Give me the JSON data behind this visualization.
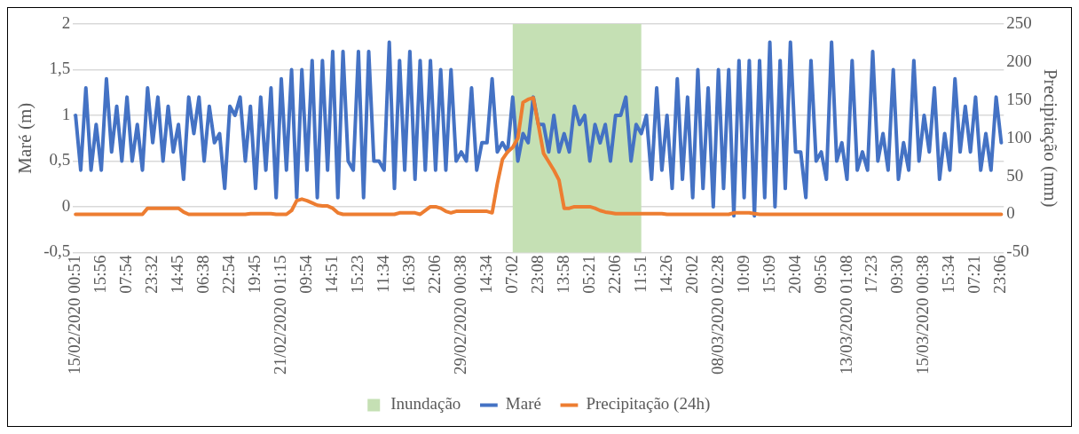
{
  "chart_data": {
    "type": "line",
    "categories": [
      "15/02/2020 00:51",
      null,
      null,
      null,
      null,
      "15:56",
      null,
      null,
      null,
      null,
      "07:54",
      null,
      null,
      null,
      null,
      "23:32",
      null,
      null,
      null,
      null,
      "14:45",
      null,
      null,
      null,
      null,
      "06:38",
      null,
      null,
      null,
      null,
      "22:54",
      null,
      null,
      null,
      null,
      "19:45",
      null,
      null,
      null,
      null,
      "21/02/2020 01:15",
      null,
      null,
      null,
      null,
      "09:54",
      null,
      null,
      null,
      null,
      "14:51",
      null,
      null,
      null,
      null,
      "15:23",
      null,
      null,
      null,
      null,
      "11:34",
      null,
      null,
      null,
      null,
      "16:39",
      null,
      null,
      null,
      null,
      "22:06",
      null,
      null,
      null,
      null,
      "29/02/2020 00:38",
      null,
      null,
      null,
      null,
      "14:34",
      null,
      null,
      null,
      null,
      "07:02",
      null,
      null,
      null,
      null,
      "23:08",
      null,
      null,
      null,
      null,
      "13:58",
      null,
      null,
      null,
      null,
      "05:21",
      null,
      null,
      null,
      null,
      "22:06",
      null,
      null,
      null,
      null,
      "11:51",
      null,
      null,
      null,
      null,
      "14:26",
      null,
      null,
      null,
      null,
      "20:02",
      null,
      null,
      null,
      null,
      "08/03/2020 02:28",
      null,
      null,
      null,
      null,
      "10:09",
      null,
      null,
      null,
      null,
      "15:09",
      null,
      null,
      null,
      null,
      "20:04",
      null,
      null,
      null,
      null,
      "09:56",
      null,
      null,
      null,
      null,
      "13/03/2020 01:08",
      null,
      null,
      null,
      null,
      "17:23",
      null,
      null,
      null,
      null,
      "09:30",
      null,
      null,
      null,
      null,
      "15/03/2020 00:38",
      null,
      null,
      null,
      null,
      "15:34",
      null,
      null,
      null,
      null,
      "07:21",
      null,
      null,
      null,
      null,
      "23:06"
    ],
    "series": [
      {
        "name": "Maré",
        "color": "#4472c4",
        "values": [
          1.0,
          0.4,
          1.3,
          0.4,
          0.9,
          0.4,
          1.4,
          0.6,
          1.1,
          0.5,
          1.2,
          0.5,
          0.9,
          0.4,
          1.3,
          0.7,
          1.2,
          0.5,
          1.1,
          0.6,
          0.9,
          0.3,
          1.2,
          0.8,
          1.2,
          0.5,
          1.1,
          0.7,
          0.8,
          0.2,
          1.1,
          1.0,
          1.2,
          0.5,
          1.1,
          0.2,
          1.2,
          0.4,
          1.3,
          0.1,
          1.4,
          0.4,
          1.5,
          0.1,
          1.5,
          0.4,
          1.6,
          0.1,
          1.6,
          0.4,
          1.7,
          0.1,
          1.7,
          0.5,
          0.4,
          1.7,
          0.1,
          1.7,
          0.5,
          0.5,
          0.4,
          1.8,
          0.2,
          1.6,
          0.4,
          1.7,
          0.3,
          1.6,
          0.4,
          1.6,
          0.4,
          1.5,
          0.4,
          1.5,
          0.5,
          0.6,
          0.5,
          1.3,
          0.4,
          0.7,
          0.7,
          1.4,
          0.6,
          0.7,
          0.6,
          1.2,
          0.5,
          0.8,
          0.7,
          1.2,
          0.9,
          0.9,
          0.6,
          1.0,
          0.6,
          0.8,
          0.6,
          1.1,
          0.9,
          1.0,
          0.5,
          0.9,
          0.7,
          0.9,
          0.5,
          1.0,
          1.0,
          1.2,
          0.5,
          0.9,
          0.8,
          1.0,
          0.3,
          1.3,
          0.4,
          1.0,
          0.2,
          1.4,
          0.3,
          1.2,
          0.1,
          1.5,
          0.2,
          1.3,
          0.0,
          1.5,
          0.2,
          1.5,
          -0.1,
          1.6,
          0.1,
          1.6,
          -0.1,
          1.6,
          0.1,
          1.8,
          0.0,
          1.6,
          0.2,
          1.8,
          0.6,
          0.6,
          0.1,
          1.6,
          0.5,
          0.6,
          0.3,
          1.8,
          0.5,
          0.7,
          0.3,
          1.6,
          0.4,
          0.6,
          0.4,
          1.7,
          0.5,
          0.8,
          0.4,
          1.5,
          0.3,
          0.7,
          0.4,
          1.6,
          0.5,
          1.0,
          0.6,
          1.3,
          0.3,
          0.8,
          0.4,
          1.4,
          0.6,
          1.1,
          0.6,
          1.2,
          0.4,
          0.8,
          0.4,
          1.2,
          0.7
        ]
      },
      {
        "name": "Precipitação (24h)",
        "axis": "y2",
        "color": "#ed7d31",
        "values": [
          0,
          0,
          0,
          0,
          0,
          0,
          0,
          0,
          0,
          0,
          0,
          0,
          0,
          0,
          8,
          8,
          8,
          8,
          8,
          8,
          8,
          3,
          0,
          0,
          0,
          0,
          0,
          0,
          0,
          0,
          0,
          0,
          0,
          0,
          1,
          1,
          1,
          1,
          1,
          0,
          0,
          0,
          5,
          18,
          20,
          18,
          15,
          12,
          11,
          11,
          8,
          2,
          0,
          0,
          0,
          0,
          0,
          0,
          0,
          0,
          0,
          0,
          0,
          2,
          2,
          2,
          2,
          0,
          5,
          10,
          10,
          8,
          4,
          2,
          4,
          4,
          4,
          4,
          4,
          4,
          4,
          2,
          40,
          72,
          82,
          88,
          100,
          147,
          151,
          153,
          117,
          80,
          69,
          58,
          45,
          8,
          8,
          10,
          10,
          10,
          10,
          8,
          5,
          3,
          2,
          1,
          1,
          1,
          1,
          1,
          1,
          1,
          1,
          1,
          1,
          0,
          0,
          0,
          0,
          0,
          0,
          0,
          0,
          0,
          0,
          0,
          0,
          0,
          2,
          2,
          2,
          2,
          1,
          0,
          0,
          0,
          0,
          0,
          0,
          0,
          0,
          0,
          0,
          0,
          0,
          0,
          0,
          0,
          0,
          0,
          0,
          0,
          0,
          0,
          0,
          0,
          0,
          0,
          0,
          0,
          0,
          0,
          0,
          0,
          0,
          0,
          0,
          0,
          0,
          0,
          0,
          0,
          0,
          0,
          0,
          0,
          0,
          0,
          0,
          0,
          0
        ]
      }
    ],
    "ylabel": "Maré (m)",
    "y2label": "Precipitação (mm)",
    "ylim": [
      -0.5,
      2
    ],
    "yticks": [
      {
        "value": -0.5,
        "label": "-0,5"
      },
      0,
      {
        "value": 0.5,
        "label": "0,5"
      },
      1,
      {
        "value": 1.5,
        "label": "1,5"
      },
      2
    ],
    "y2lim": [
      -50,
      250
    ],
    "y2ticks": [
      -50,
      0,
      50,
      100,
      150,
      200,
      250
    ],
    "bands": [
      {
        "axis": "x",
        "from": "07:02",
        "to": "11:51",
        "label": "Inundação",
        "color": "#c5e0b4"
      }
    ],
    "grid": "y",
    "legend": "bottom",
    "line_style": "solid"
  }
}
